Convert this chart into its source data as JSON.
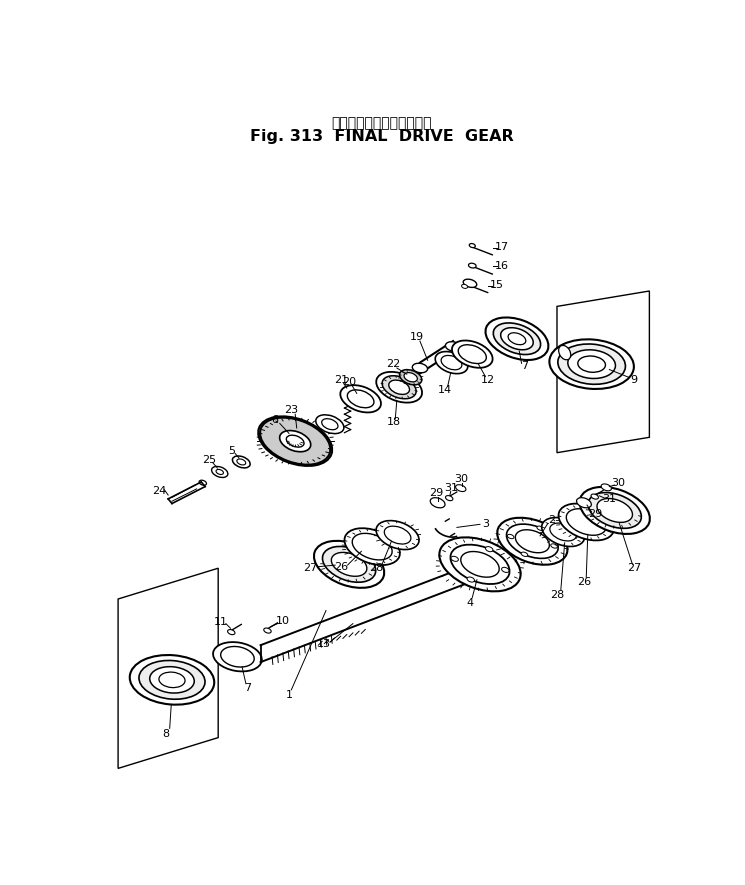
{
  "title_japanese": "ファイナルドライブギヤー",
  "title_english": "Fig. 313  FINAL  DRIVE  GEAR",
  "bg_color": "#ffffff",
  "line_color": "#000000",
  "text_color": "#000000",
  "fig_width": 7.45,
  "fig_height": 8.85,
  "dpi": 100
}
